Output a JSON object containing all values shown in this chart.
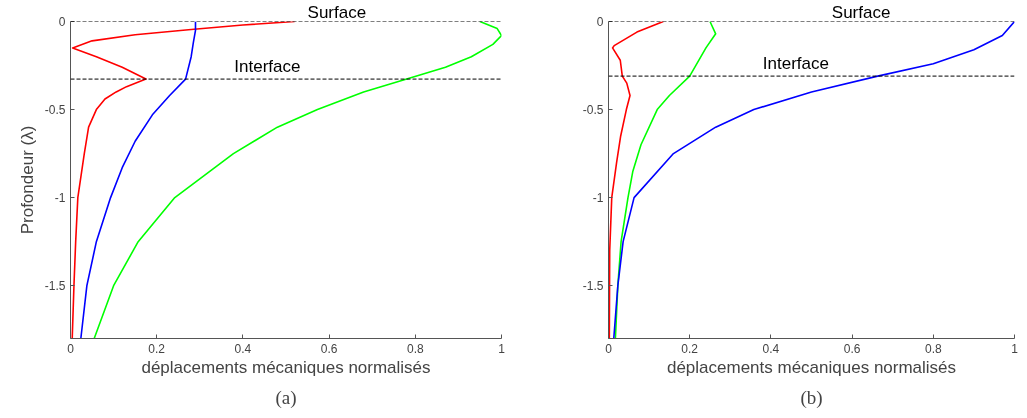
{
  "chart_data": [
    {
      "type": "line",
      "xlabel": "déplacements mécaniques normalisés",
      "ylabel": "Profondeur (λ)",
      "xlim": [
        0,
        1
      ],
      "ylim": [
        -1.8,
        0
      ],
      "xticks": [
        0,
        0.2,
        0.4,
        0.6,
        0.8,
        1
      ],
      "yticks": [
        0,
        -0.5,
        -1,
        -1.5
      ],
      "grid": false,
      "line_style": "solid",
      "marker": "none",
      "annotations": [
        "(a)"
      ],
      "ref_lines": [
        {
          "axis": "y",
          "value": 0,
          "label": "Surface",
          "color": "#000000",
          "line_style": "dashed"
        },
        {
          "axis": "y",
          "value": -0.327,
          "label": "Interface",
          "color": "#000000",
          "line_style": "dashed"
        }
      ],
      "series": [
        {
          "color": "#ff0000",
          "x": [
            0.52,
            0.4,
            0.28,
            0.15,
            0.05,
            0.005,
            0.06,
            0.12,
            0.175,
            0.13,
            0.106,
            0.08,
            0.06,
            0.042,
            0.032,
            0.017,
            0.012,
            0.008,
            0.004
          ],
          "values": [
            0,
            -0.02,
            -0.045,
            -0.075,
            -0.11,
            -0.15,
            -0.2,
            -0.26,
            -0.327,
            -0.37,
            -0.4,
            -0.44,
            -0.5,
            -0.6,
            -0.75,
            -1.0,
            -1.25,
            -1.5,
            -1.8
          ]
        },
        {
          "color": "#0000ff",
          "x": [
            0.29,
            0.29,
            0.285,
            0.28,
            0.267,
            0.23,
            0.19,
            0.15,
            0.12,
            0.093,
            0.06,
            0.038,
            0.024
          ],
          "values": [
            0,
            -0.05,
            -0.12,
            -0.2,
            -0.327,
            -0.42,
            -0.53,
            -0.68,
            -0.83,
            -1.0,
            -1.25,
            -1.5,
            -1.8
          ]
        },
        {
          "color": "#00ff00",
          "x": [
            0.95,
            0.99,
            1.0,
            0.98,
            0.93,
            0.87,
            0.78,
            0.68,
            0.573,
            0.48,
            0.378,
            0.242,
            0.157,
            0.1,
            0.055
          ],
          "values": [
            0,
            -0.04,
            -0.08,
            -0.13,
            -0.2,
            -0.26,
            -0.327,
            -0.4,
            -0.5,
            -0.6,
            -0.75,
            -1.0,
            -1.25,
            -1.5,
            -1.8
          ]
        }
      ]
    },
    {
      "type": "line",
      "xlabel": "déplacements mécaniques normalisés",
      "xlim": [
        0,
        1
      ],
      "ylim": [
        -1.8,
        0
      ],
      "xticks": [
        0,
        0.2,
        0.4,
        0.6,
        0.8,
        1
      ],
      "yticks": [
        0,
        -0.5,
        -1,
        -1.5
      ],
      "grid": false,
      "line_style": "solid",
      "marker": "none",
      "annotations": [
        "(b)"
      ],
      "ref_lines": [
        {
          "axis": "y",
          "value": 0,
          "label": "Surface",
          "color": "#000000",
          "line_style": "dashed"
        },
        {
          "axis": "y",
          "value": -0.31,
          "label": "Interface",
          "color": "#000000",
          "line_style": "dashed"
        }
      ],
      "series": [
        {
          "color": "#ff0000",
          "x": [
            0.135,
            0.07,
            0.014,
            0.01,
            0.029,
            0.034,
            0.045,
            0.053,
            0.044,
            0.03,
            0.02,
            0.008,
            0.003,
            0.002
          ],
          "values": [
            0,
            -0.06,
            -0.137,
            -0.15,
            -0.22,
            -0.31,
            -0.35,
            -0.42,
            -0.5,
            -0.65,
            -0.8,
            -1.0,
            -1.3,
            -1.8
          ]
        },
        {
          "color": "#00ff00",
          "x": [
            0.25,
            0.264,
            0.24,
            0.2,
            0.15,
            0.12,
            0.08,
            0.06,
            0.048,
            0.031,
            0.023,
            0.017
          ],
          "values": [
            0,
            -0.07,
            -0.15,
            -0.31,
            -0.42,
            -0.5,
            -0.7,
            -0.85,
            -1.0,
            -1.25,
            -1.5,
            -1.8
          ]
        },
        {
          "color": "#0000ff",
          "x": [
            1.0,
            0.97,
            0.9,
            0.8,
            0.663,
            0.5,
            0.358,
            0.264,
            0.16,
            0.063,
            0.036,
            0.023,
            0.013
          ],
          "values": [
            0,
            -0.08,
            -0.16,
            -0.24,
            -0.31,
            -0.4,
            -0.5,
            -0.6,
            -0.75,
            -1.0,
            -1.25,
            -1.5,
            -1.8
          ]
        }
      ]
    }
  ]
}
